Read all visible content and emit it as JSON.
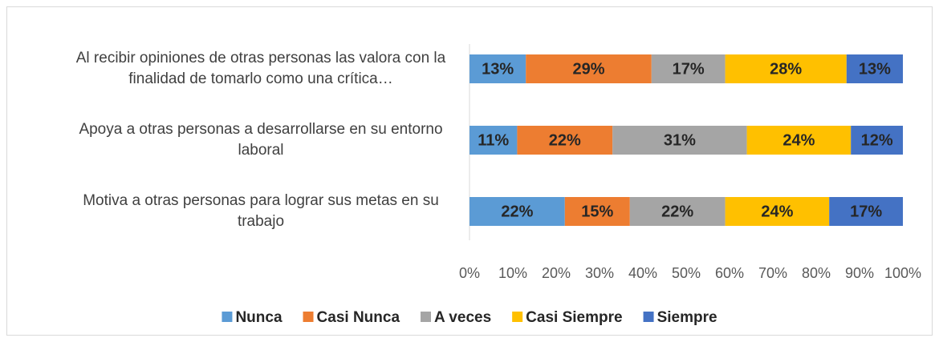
{
  "chart_data": {
    "type": "stacked_barh",
    "categories": [
      "Al recibir opiniones de otras personas las valora con la finalidad de tomarlo como una crítica…",
      "Apoya a otras personas a desarrollarse en su entorno laboral",
      "Motiva a otras personas para lograr sus metas en su trabajo"
    ],
    "series": [
      {
        "name": "Nunca",
        "color": "#5B9BD5",
        "values": [
          13,
          11,
          22
        ],
        "value_labels": [
          "13%",
          "11%",
          "22%"
        ]
      },
      {
        "name": "Casi Nunca",
        "color": "#ED7D31",
        "values": [
          29,
          22,
          15
        ],
        "value_labels": [
          "29%",
          "22%",
          "15%"
        ]
      },
      {
        "name": "A veces",
        "color": "#A5A5A5",
        "values": [
          17,
          31,
          22
        ],
        "value_labels": [
          "17%",
          "31%",
          "22%"
        ]
      },
      {
        "name": "Casi Siempre",
        "color": "#FFC000",
        "values": [
          28,
          24,
          24
        ],
        "value_labels": [
          "28%",
          "24%",
          "24%"
        ]
      },
      {
        "name": "Siempre",
        "color": "#4472C4",
        "values": [
          13,
          12,
          17
        ],
        "value_labels": [
          "13%",
          "12%",
          "17%"
        ]
      }
    ],
    "xlim": [
      0,
      100
    ],
    "xticks": [
      {
        "value": 0,
        "label": "0%"
      },
      {
        "value": 10,
        "label": "10%"
      },
      {
        "value": 20,
        "label": "20%"
      },
      {
        "value": 30,
        "label": "30%"
      },
      {
        "value": 40,
        "label": "40%"
      },
      {
        "value": 50,
        "label": "50%"
      },
      {
        "value": 60,
        "label": "60%"
      },
      {
        "value": 70,
        "label": "70%"
      },
      {
        "value": 80,
        "label": "80%"
      },
      {
        "value": 90,
        "label": "90%"
      },
      {
        "value": 100,
        "label": "100%"
      }
    ],
    "grid": false,
    "legend": "bottom"
  }
}
